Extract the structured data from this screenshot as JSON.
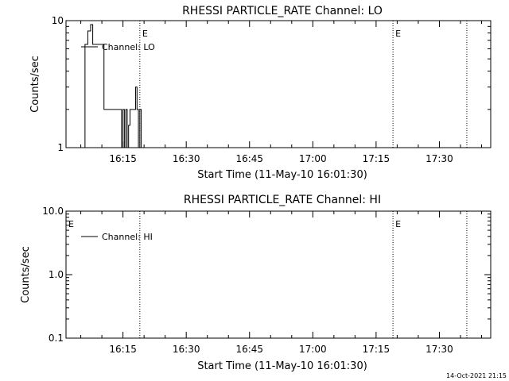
{
  "footer": {
    "timestamp": "14-Oct-2021 21:15"
  },
  "chart_data": [
    {
      "type": "line",
      "title": "RHESSI PARTICLE_RATE Channel: LO",
      "xlabel": "Start Time (11-May-10 16:01:30)",
      "ylabel": "Counts/sec",
      "y_scale": "log",
      "ylim": [
        1,
        10
      ],
      "xlim": [
        "16:01:30",
        "17:42:10"
      ],
      "x_ticks": [
        "16:15",
        "16:30",
        "16:45",
        "17:00",
        "17:15",
        "17:30"
      ],
      "y_ticks": [
        "1",
        "10"
      ],
      "legend": {
        "label": "Channel: LO",
        "position": "top-left"
      },
      "event_markers": [
        {
          "time": "16:19:00",
          "label": "E"
        },
        {
          "time": "17:19:00",
          "label": "E"
        },
        {
          "time": "17:36:30",
          "label": ""
        }
      ],
      "series": [
        {
          "x": [
            "16:05:00",
            "16:06:00",
            "16:06:40",
            "16:07:20",
            "16:07:50",
            "16:08:30",
            "16:09:30",
            "16:10:30",
            "16:11:30",
            "16:12:00",
            "16:14:00",
            "16:14:40",
            "16:15:00",
            "16:15:20",
            "16:15:40",
            "16:16:00",
            "16:16:20",
            "16:16:40",
            "16:17:00",
            "16:17:30",
            "16:18:00",
            "16:18:20",
            "16:18:40",
            "16:19:00",
            "16:19:20"
          ],
          "values": [
            1.0,
            6.5,
            8.3,
            9.3,
            6.5,
            6.5,
            6.5,
            2.0,
            2.0,
            2.0,
            2.0,
            1.0,
            2.0,
            1.0,
            2.0,
            1.0,
            1.5,
            2.0,
            2.0,
            2.0,
            3.0,
            2.0,
            1.0,
            2.0,
            1.0
          ]
        }
      ]
    },
    {
      "type": "line",
      "title": "RHESSI PARTICLE_RATE Channel: HI",
      "xlabel": "Start Time (11-May-10 16:01:30)",
      "ylabel": "Counts/sec",
      "y_scale": "log",
      "ylim": [
        0.1,
        10
      ],
      "xlim": [
        "16:01:30",
        "17:42:10"
      ],
      "x_ticks": [
        "16:15",
        "16:30",
        "16:45",
        "17:00",
        "17:15",
        "17:30"
      ],
      "y_ticks": [
        "0.1",
        "1.0",
        "10.0"
      ],
      "legend": {
        "label": "Channel: HI",
        "position": "top-left"
      },
      "event_markers": [
        {
          "time": "16:01:30",
          "label": "E"
        },
        {
          "time": "16:19:00",
          "label": ""
        },
        {
          "time": "17:19:00",
          "label": "E"
        },
        {
          "time": "17:36:30",
          "label": ""
        }
      ],
      "series": [
        {
          "x": [],
          "values": []
        }
      ]
    }
  ]
}
